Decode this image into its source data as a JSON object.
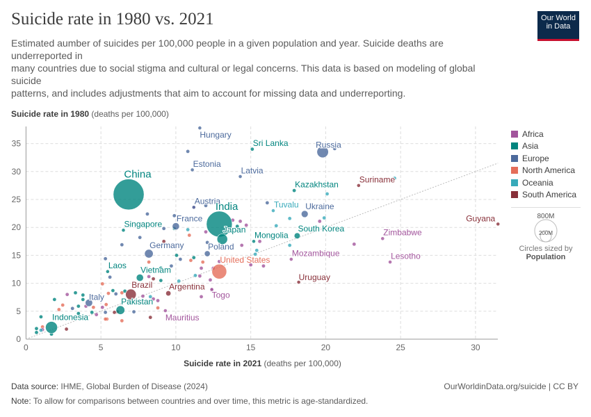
{
  "header": {
    "title": "Suicide rate in 1980 vs. 2021",
    "subtitle": "Estimated aumber of suicides per 100,000 people in a given population and year. Suicide deaths are underreported in\nmany countries due to social stigma and cultural or legal concerns. This data is based on modeling of global suicide\npatterns, and includes adjustments that aim to account for missing data and underreporting.",
    "logo": "Our World in Data"
  },
  "footer": {
    "source_label": "Data source:",
    "source": "IHME, Global Burden of Disease (2024)",
    "url": "OurWorldinData.org/suicide | CC BY",
    "note_label": "Note:",
    "note": "To allow for comparisons between countries and over time, this metric is age-standardized."
  },
  "chart_data": {
    "type": "scatter",
    "title": "Suicide rate in 1980 vs. 2021",
    "xlabel": "Suicide rate in 2021",
    "xunit": "(deaths per 100,000)",
    "ylabel": "Suicide rate in 1980",
    "yunit": "(deaths per 100,000)",
    "xlim": [
      0,
      31.5
    ],
    "ylim": [
      0,
      38
    ],
    "xticks": [
      0,
      5,
      10,
      15,
      20,
      25,
      30
    ],
    "yticks": [
      0,
      5,
      10,
      15,
      20,
      25,
      30,
      35
    ],
    "grid": true,
    "reference_line": "y = x",
    "legend_position": "right",
    "regions": [
      {
        "name": "Africa",
        "color": "#a2559c"
      },
      {
        "name": "Asia",
        "color": "#00847e"
      },
      {
        "name": "Europe",
        "color": "#4c6a9c"
      },
      {
        "name": "North America",
        "color": "#e56e5a"
      },
      {
        "name": "Oceania",
        "color": "#38aaba"
      },
      {
        "name": "South America",
        "color": "#883039"
      }
    ],
    "size_legend": {
      "values": [
        "800M",
        "200M"
      ],
      "caption": "Circles sized by",
      "variable": "Population"
    },
    "labeled_points": [
      {
        "name": "Hungary",
        "x": 11.6,
        "y": 37.8,
        "region": "Europe",
        "pop": 11
      },
      {
        "name": "Sri Lanka",
        "x": 15.1,
        "y": 34.0,
        "region": "Asia",
        "pop": 15
      },
      {
        "name": "Russia",
        "x": 19.8,
        "y": 33.5,
        "region": "Europe",
        "pop": 140
      },
      {
        "name": "Estonia",
        "x": 11.1,
        "y": 30.3,
        "region": "Europe",
        "pop": 1.5
      },
      {
        "name": "Latvia",
        "x": 14.3,
        "y": 29.1,
        "region": "Europe",
        "pop": 2.5
      },
      {
        "name": "China",
        "x": 6.85,
        "y": 25.9,
        "region": "Asia",
        "pop": 1000
      },
      {
        "name": "Kazakhstan",
        "x": 17.9,
        "y": 26.6,
        "region": "Asia",
        "pop": 15
      },
      {
        "name": "Suriname",
        "x": 22.2,
        "y": 27.5,
        "region": "South America",
        "pop": 0.4
      },
      {
        "name": "Austria",
        "x": 11.2,
        "y": 23.6,
        "region": "Europe",
        "pop": 7.5
      },
      {
        "name": "India",
        "x": 12.9,
        "y": 20.6,
        "region": "Asia",
        "pop": 700
      },
      {
        "name": "Tuvalu",
        "x": 16.5,
        "y": 23.0,
        "region": "Oceania",
        "pop": 0.01
      },
      {
        "name": "Ukraine",
        "x": 18.6,
        "y": 22.4,
        "region": "Europe",
        "pop": 50
      },
      {
        "name": "Guyana",
        "x": 31.5,
        "y": 20.6,
        "region": "South America",
        "pop": 0.8
      },
      {
        "name": "Singapore",
        "x": 6.5,
        "y": 19.5,
        "region": "Asia",
        "pop": 2.4
      },
      {
        "name": "France",
        "x": 10.0,
        "y": 20.2,
        "region": "Europe",
        "pop": 54
      },
      {
        "name": "Japan",
        "x": 13.1,
        "y": 17.9,
        "region": "Asia",
        "pop": 117
      },
      {
        "name": "South Korea",
        "x": 18.1,
        "y": 18.5,
        "region": "Asia",
        "pop": 38
      },
      {
        "name": "Mongolia",
        "x": 15.2,
        "y": 17.5,
        "region": "Asia",
        "pop": 1.7
      },
      {
        "name": "Zimbabwe",
        "x": 23.8,
        "y": 18.0,
        "region": "Africa",
        "pop": 7
      },
      {
        "name": "Germany",
        "x": 8.2,
        "y": 15.3,
        "region": "Europe",
        "pop": 78
      },
      {
        "name": "Poland",
        "x": 12.1,
        "y": 15.3,
        "region": "Europe",
        "pop": 35
      },
      {
        "name": "Mozambique",
        "x": 17.7,
        "y": 14.3,
        "region": "Africa",
        "pop": 12
      },
      {
        "name": "Lesotho",
        "x": 24.3,
        "y": 13.8,
        "region": "Africa",
        "pop": 1.3
      },
      {
        "name": "United States",
        "x": 12.9,
        "y": 12.1,
        "region": "North America",
        "pop": 230
      },
      {
        "name": "Laos",
        "x": 5.45,
        "y": 12.1,
        "region": "Asia",
        "pop": 3.2
      },
      {
        "name": "Vietnam",
        "x": 7.6,
        "y": 11.0,
        "region": "Asia",
        "pop": 54
      },
      {
        "name": "Togo",
        "x": 12.4,
        "y": 8.9,
        "region": "Africa",
        "pop": 2.7
      },
      {
        "name": "Uruguay",
        "x": 18.2,
        "y": 10.2,
        "region": "South America",
        "pop": 2.9
      },
      {
        "name": "Brazil",
        "x": 7.0,
        "y": 8.0,
        "region": "South America",
        "pop": 120
      },
      {
        "name": "Argentina",
        "x": 9.5,
        "y": 8.2,
        "region": "South America",
        "pop": 28
      },
      {
        "name": "Italy",
        "x": 4.2,
        "y": 6.5,
        "region": "Europe",
        "pop": 56
      },
      {
        "name": "Pakistan",
        "x": 6.3,
        "y": 5.2,
        "region": "Asia",
        "pop": 80
      },
      {
        "name": "Mauritius",
        "x": 9.3,
        "y": 5.1,
        "region": "Africa",
        "pop": 1
      },
      {
        "name": "Indonesia",
        "x": 1.7,
        "y": 2.1,
        "region": "Asia",
        "pop": 150
      }
    ],
    "other_points": [
      [
        10.8,
        33.6,
        "Europe"
      ],
      [
        8.1,
        22.4,
        "Europe"
      ],
      [
        9.9,
        22.1,
        "Europe"
      ],
      [
        12.0,
        23.9,
        "Europe"
      ],
      [
        11.2,
        23.6,
        "Africa"
      ],
      [
        7.6,
        18.2,
        "Europe"
      ],
      [
        6.4,
        16.9,
        "Europe"
      ],
      [
        9.2,
        19.8,
        "Europe"
      ],
      [
        5.3,
        14.4,
        "Europe"
      ],
      [
        5.6,
        11.1,
        "Europe"
      ],
      [
        5.1,
        9.9,
        "North America"
      ],
      [
        5.8,
        8.7,
        "Asia"
      ],
      [
        3.3,
        8.3,
        "Asia"
      ],
      [
        2.75,
        8.0,
        "Africa"
      ],
      [
        1.9,
        7.1,
        "Asia"
      ],
      [
        2.45,
        6.1,
        "North America"
      ],
      [
        1.0,
        4.0,
        "Asia"
      ],
      [
        2.7,
        1.8,
        "South America"
      ],
      [
        1.7,
        0.9,
        "Asia"
      ],
      [
        8.3,
        3.9,
        "South America"
      ],
      [
        11.7,
        7.6,
        "Africa"
      ],
      [
        12.4,
        8.8,
        "Africa"
      ],
      [
        12.3,
        10.6,
        "Africa"
      ],
      [
        11.3,
        11.4,
        "Oceania"
      ],
      [
        11.6,
        11.3,
        "Africa"
      ],
      [
        11.0,
        14.1,
        "North America"
      ],
      [
        11.2,
        14.6,
        "Asia"
      ],
      [
        11.8,
        13.8,
        "North America"
      ],
      [
        10.2,
        10.4,
        "Oceania"
      ],
      [
        9.0,
        10.5,
        "Asia"
      ],
      [
        8.2,
        11.2,
        "Africa"
      ],
      [
        8.5,
        10.8,
        "South America"
      ],
      [
        10.05,
        15.0,
        "Asia"
      ],
      [
        10.3,
        14.3,
        "Europe"
      ],
      [
        8.2,
        13.8,
        "North America"
      ],
      [
        9.7,
        13.1,
        "Europe"
      ],
      [
        9.0,
        12.7,
        "Asia"
      ],
      [
        9.9,
        19.8,
        "Asia"
      ],
      [
        10.8,
        19.6,
        "Oceania"
      ],
      [
        10.9,
        18.6,
        "North America"
      ],
      [
        12.0,
        19.2,
        "Africa"
      ],
      [
        12.1,
        17.3,
        "Europe"
      ],
      [
        9.2,
        17.5,
        "South America"
      ],
      [
        14.4,
        16.8,
        "Africa"
      ],
      [
        14.7,
        20.4,
        "Africa"
      ],
      [
        14.1,
        20.2,
        "Asia"
      ],
      [
        13.8,
        21.3,
        "Africa"
      ],
      [
        14.3,
        21.1,
        "Africa"
      ],
      [
        12.9,
        13.9,
        "Africa"
      ],
      [
        12.5,
        12.7,
        "Africa"
      ],
      [
        11.7,
        12.7,
        "Africa"
      ],
      [
        7.8,
        7.7,
        "Africa"
      ],
      [
        8.3,
        7.6,
        "Oceania"
      ],
      [
        8.8,
        6.9,
        "Africa"
      ],
      [
        8.8,
        5.6,
        "North America"
      ],
      [
        8.5,
        7.2,
        "Africa"
      ],
      [
        7.2,
        4.9,
        "Europe"
      ],
      [
        6.4,
        3.3,
        "North America"
      ],
      [
        6.1,
        4.9,
        "South America"
      ],
      [
        5.9,
        4.8,
        "South America"
      ],
      [
        5.3,
        4.8,
        "Europe"
      ],
      [
        5.4,
        3.6,
        "North America"
      ],
      [
        5.3,
        3.6,
        "North America"
      ],
      [
        5.1,
        5.7,
        "Africa"
      ],
      [
        5.35,
        6.2,
        "North America"
      ],
      [
        5.5,
        8.2,
        "North America"
      ],
      [
        6.4,
        8.3,
        "North America"
      ],
      [
        6.6,
        8.6,
        "Asia"
      ],
      [
        6.0,
        8.1,
        "Europe"
      ],
      [
        4.5,
        5.7,
        "North America"
      ],
      [
        4.4,
        4.8,
        "Asia"
      ],
      [
        3.8,
        7.9,
        "Asia"
      ],
      [
        3.8,
        7.1,
        "Asia"
      ],
      [
        3.5,
        5.9,
        "Asia"
      ],
      [
        3.5,
        4.6,
        "Asia"
      ],
      [
        4.0,
        5.9,
        "Africa"
      ],
      [
        4.7,
        4.4,
        "Africa"
      ],
      [
        3.1,
        5.5,
        "Europe"
      ],
      [
        2.2,
        5.3,
        "North America"
      ],
      [
        1.1,
        2.2,
        "North America"
      ],
      [
        1.1,
        1.7,
        "Africa"
      ],
      [
        1.0,
        1.6,
        "Oceania"
      ],
      [
        0.7,
        1.9,
        "Asia"
      ],
      [
        0.7,
        1.2,
        "Asia"
      ],
      [
        20.6,
        34.1,
        "Europe"
      ],
      [
        16.1,
        24.4,
        "Europe"
      ],
      [
        20.1,
        26.0,
        "Oceania"
      ],
      [
        24.6,
        28.8,
        "Oceania"
      ],
      [
        17.6,
        21.6,
        "Oceania"
      ],
      [
        19.9,
        21.7,
        "Oceania"
      ],
      [
        19.6,
        21.1,
        "Africa"
      ],
      [
        16.7,
        20.3,
        "Oceania"
      ],
      [
        15.6,
        17.5,
        "Africa"
      ],
      [
        17.6,
        16.8,
        "Oceania"
      ],
      [
        21.9,
        17.0,
        "Africa"
      ],
      [
        15.4,
        15.9,
        "Oceania"
      ],
      [
        15.3,
        15.2,
        "Oceania"
      ],
      [
        15.85,
        13.1,
        "Africa"
      ],
      [
        15.0,
        13.3,
        "Africa"
      ]
    ]
  }
}
